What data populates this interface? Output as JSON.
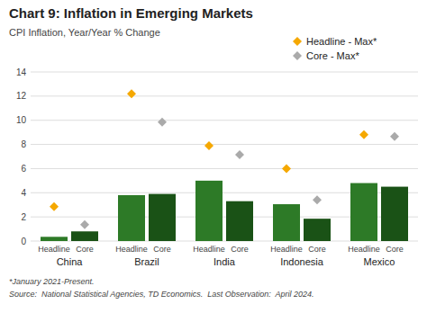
{
  "chart_data": {
    "type": "bar",
    "title": "Chart 9: Inflation in Emerging Markets",
    "subtitle": "CPI Inflation, Year/Year % Change",
    "annotations": [
      "*January 2021-Present.",
      "Source:  National Statistical Agencies, TD Economics.  Last Observation:  April 2024."
    ],
    "categories": [
      "China",
      "Brazil",
      "India",
      "Indonesia",
      "Mexico"
    ],
    "series": [
      {
        "name": "Headline",
        "type": "bar",
        "color": "#2d7a27",
        "values": [
          0.35,
          3.8,
          5.0,
          3.05,
          4.8
        ]
      },
      {
        "name": "Core",
        "type": "bar",
        "color": "#1a5216",
        "values": [
          0.8,
          3.9,
          3.3,
          1.85,
          4.5
        ]
      },
      {
        "name": "Headline - Max*",
        "type": "scatter",
        "marker": "diamond",
        "color": "#f5a800",
        "values": [
          2.85,
          12.2,
          7.9,
          6.0,
          8.8
        ]
      },
      {
        "name": "Core - Max*",
        "type": "scatter",
        "marker": "diamond",
        "color": "#aaaaaa",
        "values": [
          1.35,
          9.85,
          7.15,
          3.4,
          8.65
        ]
      }
    ],
    "ylim": [
      0,
      14
    ],
    "yticks": [
      0,
      2,
      4,
      6,
      8,
      10,
      12,
      14
    ],
    "grid": true,
    "legend": "top-right"
  }
}
